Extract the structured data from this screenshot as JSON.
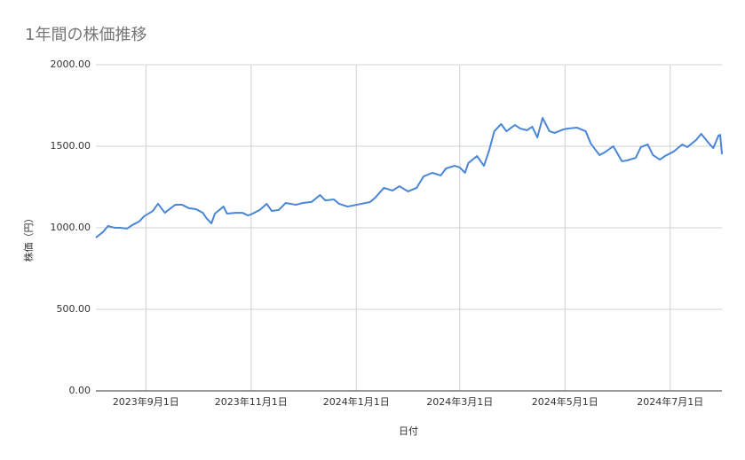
{
  "chart_data": {
    "type": "line",
    "title": "1年間の株価推移",
    "x_label": "日付",
    "y_label": "株価（円）",
    "color": "#4a86d8",
    "grid": true,
    "xlim": [
      "2023-08-03",
      "2024-07-31"
    ],
    "xticks": [
      {
        "value": "2023-09-01",
        "label": "2023年9月1日"
      },
      {
        "value": "2023-11-01",
        "label": "2023年11月1日"
      },
      {
        "value": "2024-01-01",
        "label": "2024年1月1日"
      },
      {
        "value": "2024-03-01",
        "label": "2024年3月1日"
      },
      {
        "value": "2024-05-01",
        "label": "2024年5月1日"
      },
      {
        "value": "2024-07-01",
        "label": "2024年7月1日"
      }
    ],
    "ylim": [
      0,
      2000
    ],
    "yticks": [
      {
        "value": 0,
        "label": "0.00"
      },
      {
        "value": 500,
        "label": "500.00"
      },
      {
        "value": 1000,
        "label": "1000.00"
      },
      {
        "value": 1500,
        "label": "1500.00"
      },
      {
        "value": 2000,
        "label": "2000.00"
      }
    ],
    "x": [
      "2023-08-03",
      "2023-08-07",
      "2023-08-10",
      "2023-08-14",
      "2023-08-17",
      "2023-08-21",
      "2023-08-24",
      "2023-08-28",
      "2023-08-31",
      "2023-09-05",
      "2023-09-08",
      "2023-09-12",
      "2023-09-14",
      "2023-09-18",
      "2023-09-22",
      "2023-09-26",
      "2023-09-30",
      "2023-10-04",
      "2023-10-06",
      "2023-10-09",
      "2023-10-11",
      "2023-10-16",
      "2023-10-18",
      "2023-10-23",
      "2023-10-27",
      "2023-10-30",
      "2023-11-01",
      "2023-11-06",
      "2023-11-10",
      "2023-11-13",
      "2023-11-17",
      "2023-11-21",
      "2023-11-27",
      "2023-12-01",
      "2023-12-06",
      "2023-12-11",
      "2023-12-14",
      "2023-12-19",
      "2023-12-22",
      "2023-12-27",
      "2024-01-04",
      "2024-01-09",
      "2024-01-12",
      "2024-01-17",
      "2024-01-22",
      "2024-01-26",
      "2024-01-31",
      "2024-02-05",
      "2024-02-09",
      "2024-02-14",
      "2024-02-19",
      "2024-02-22",
      "2024-02-27",
      "2024-03-01",
      "2024-03-04",
      "2024-03-06",
      "2024-03-11",
      "2024-03-15",
      "2024-03-18",
      "2024-03-21",
      "2024-03-25",
      "2024-03-28",
      "2024-04-02",
      "2024-04-05",
      "2024-04-09",
      "2024-04-12",
      "2024-04-15",
      "2024-04-18",
      "2024-04-22",
      "2024-04-25",
      "2024-04-30",
      "2024-05-03",
      "2024-05-08",
      "2024-05-13",
      "2024-05-16",
      "2024-05-21",
      "2024-05-24",
      "2024-05-29",
      "2024-06-03",
      "2024-06-06",
      "2024-06-11",
      "2024-06-14",
      "2024-06-18",
      "2024-06-21",
      "2024-06-25",
      "2024-06-28",
      "2024-07-03",
      "2024-07-08",
      "2024-07-11",
      "2024-07-16",
      "2024-07-19",
      "2024-07-24",
      "2024-07-26",
      "2024-07-29",
      "2024-07-30",
      "2024-07-31"
    ],
    "values": [
      940,
      973,
      1011,
      1000,
      1000,
      995,
      1016,
      1038,
      1071,
      1103,
      1147,
      1092,
      1109,
      1141,
      1141,
      1120,
      1114,
      1092,
      1060,
      1027,
      1087,
      1130,
      1087,
      1092,
      1092,
      1076,
      1082,
      1109,
      1147,
      1103,
      1109,
      1152,
      1141,
      1152,
      1158,
      1201,
      1168,
      1174,
      1147,
      1130,
      1147,
      1158,
      1185,
      1245,
      1228,
      1255,
      1223,
      1245,
      1315,
      1337,
      1321,
      1364,
      1380,
      1370,
      1337,
      1397,
      1440,
      1380,
      1473,
      1592,
      1636,
      1592,
      1630,
      1609,
      1598,
      1620,
      1554,
      1674,
      1592,
      1582,
      1603,
      1609,
      1614,
      1592,
      1516,
      1446,
      1462,
      1500,
      1408,
      1413,
      1429,
      1495,
      1511,
      1446,
      1418,
      1440,
      1467,
      1511,
      1495,
      1538,
      1576,
      1511,
      1489,
      1565,
      1570,
      1451
    ]
  }
}
